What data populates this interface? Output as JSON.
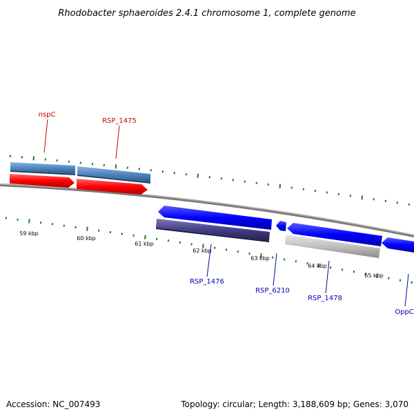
{
  "title": "Rhodobacter sphaeroides 2.4.1 chromosome 1, complete genome",
  "ticks": [
    "59 kbp",
    "60 kbp",
    "61 kbp",
    "62 kbp",
    "63 kbp",
    "64 kbp",
    "65 kbp"
  ],
  "genes_top": [
    {
      "name": "nspC",
      "color": "#cc0000"
    },
    {
      "name": "RSP_1475",
      "color": "#cc0000"
    }
  ],
  "genes_bottom": [
    {
      "name": "RSP_1476",
      "color": "#0000aa"
    },
    {
      "name": "RSP_6210",
      "color": "#0000aa"
    },
    {
      "name": "RSP_1478",
      "color": "#0000aa"
    },
    {
      "name": "OppC",
      "color": "#0000aa"
    }
  ],
  "colors": {
    "forward_gene": "#ff0000",
    "reverse_gene": "#0000ff",
    "cds_light_blue": "#4f86c0",
    "cds_purple": "#443f86",
    "cds_grey": "#c0c0c0",
    "backbone": "#808080",
    "tick_marks": "#1a7a1a"
  },
  "footer": {
    "accession": "Accession: NC_007493",
    "info": "Topology: circular; Length: 3,188,609 bp; Genes: 3,070"
  }
}
